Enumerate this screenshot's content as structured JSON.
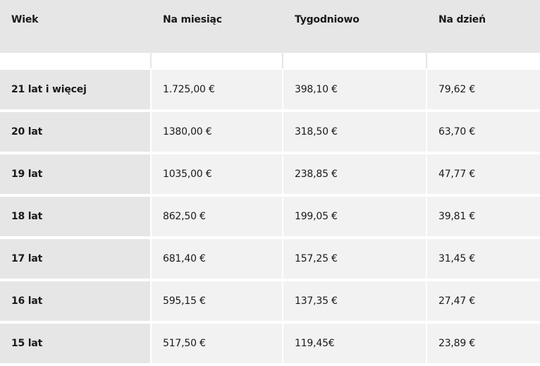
{
  "table": {
    "headers": [
      "Wiek",
      "Na miesiąc",
      "Tygodniowo",
      "Na dzień"
    ],
    "rows": [
      [
        "21 lat i więcej",
        "1.725,00 €",
        "398,10 €",
        "79,62 €"
      ],
      [
        "20 lat",
        "1380,00 €",
        "318,50 €",
        "63,70 €"
      ],
      [
        "19 lat",
        "1035,00 €",
        "238,85 €",
        "47,77 €"
      ],
      [
        "18 lat",
        "862,50 €",
        "199,05 €",
        "39,81 €"
      ],
      [
        "17 lat",
        "681,40 €",
        "157,25 €",
        "31,45 €"
      ],
      [
        "16 lat",
        "595,15 €",
        "137,35 €",
        "27,47 €"
      ],
      [
        "15 lat",
        "517,50 €",
        "119,45€",
        "23,89 €"
      ]
    ]
  },
  "colors": {
    "header_bg": "#e6e6e6",
    "age_col_bg": "#e6e6e6",
    "value_bg": "#f2f2f2",
    "separator": "#ffffff"
  }
}
